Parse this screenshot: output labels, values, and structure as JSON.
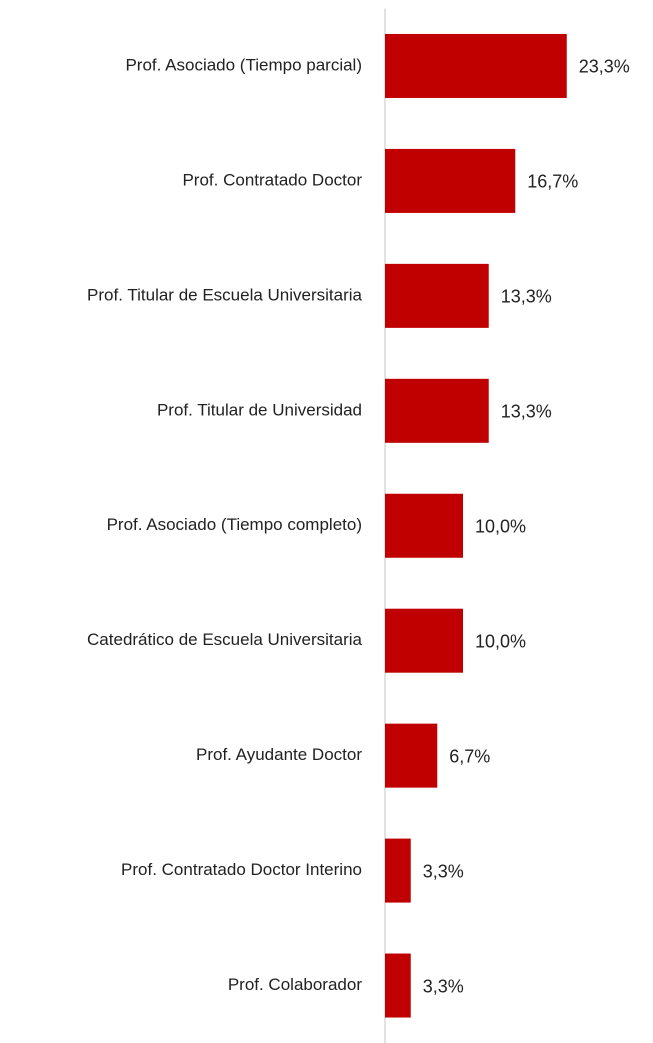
{
  "chart_data": {
    "type": "barh",
    "categories": [
      "Prof. Asociado (Tiempo parcial)",
      "Prof. Contratado Doctor",
      "Prof. Titular de Escuela Universitaria",
      "Prof. Titular de Universidad",
      "Prof. Asociado (Tiempo completo)",
      "Catedrático de Escuela Universitaria",
      "Prof. Ayudante Doctor",
      "Prof. Contratado Doctor Interino",
      "Prof. Colaborador"
    ],
    "values": [
      23.3,
      16.7,
      13.3,
      13.3,
      10.0,
      10.0,
      6.7,
      3.3,
      3.3
    ],
    "value_labels": [
      "23,3%",
      "16,7%",
      "13,3%",
      "13,3%",
      "10,0%",
      "10,0%",
      "6,7%",
      "3,3%",
      "3,3%"
    ],
    "color": "#c00000",
    "xlim": [
      0,
      30
    ]
  }
}
